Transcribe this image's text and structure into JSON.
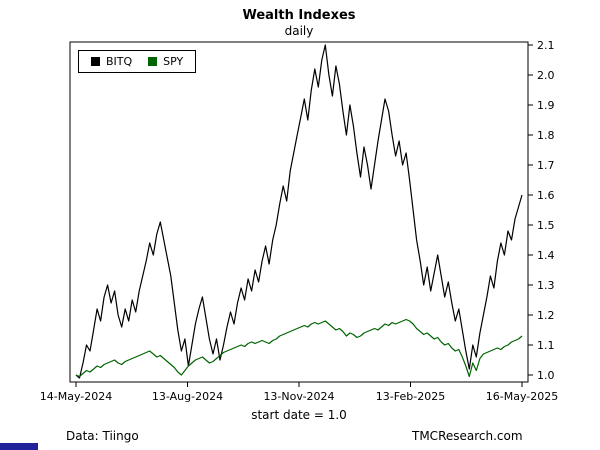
{
  "title": "Wealth Indexes",
  "subtitle": "daily",
  "footer": {
    "left": "Data: Tiingo",
    "right": "TMCResearch.com"
  },
  "chart_data": {
    "type": "line",
    "title": "Wealth Indexes",
    "subtitle": "daily",
    "xlabel": "start date = 1.0",
    "ylim": [
      1.0,
      2.1
    ],
    "grid": false,
    "legend_position": "top-left-inside",
    "x_tick_labels": [
      "14-May-2024",
      "13-Aug-2024",
      "13-Nov-2024",
      "13-Feb-2025",
      "16-May-2025"
    ],
    "y_tick_labels": [
      "1.0",
      "1.1",
      "1.2",
      "1.3",
      "1.4",
      "1.5",
      "1.6",
      "1.7",
      "1.8",
      "1.9",
      "2.0",
      "2.1"
    ],
    "series": [
      {
        "name": "BITQ",
        "color": "#000000",
        "values": [
          1.0,
          0.99,
          1.04,
          1.1,
          1.08,
          1.15,
          1.22,
          1.18,
          1.26,
          1.3,
          1.24,
          1.28,
          1.2,
          1.16,
          1.22,
          1.18,
          1.25,
          1.21,
          1.28,
          1.33,
          1.38,
          1.44,
          1.4,
          1.47,
          1.51,
          1.45,
          1.39,
          1.33,
          1.24,
          1.15,
          1.08,
          1.12,
          1.03,
          1.1,
          1.17,
          1.22,
          1.26,
          1.19,
          1.12,
          1.07,
          1.12,
          1.05,
          1.1,
          1.16,
          1.21,
          1.17,
          1.24,
          1.29,
          1.25,
          1.32,
          1.28,
          1.35,
          1.31,
          1.38,
          1.43,
          1.37,
          1.45,
          1.5,
          1.57,
          1.63,
          1.58,
          1.68,
          1.74,
          1.8,
          1.86,
          1.92,
          1.85,
          1.95,
          2.02,
          1.96,
          2.05,
          2.1,
          2.0,
          1.93,
          2.03,
          1.97,
          1.88,
          1.8,
          1.9,
          1.83,
          1.74,
          1.66,
          1.76,
          1.7,
          1.62,
          1.7,
          1.78,
          1.85,
          1.92,
          1.88,
          1.8,
          1.73,
          1.78,
          1.7,
          1.74,
          1.65,
          1.55,
          1.45,
          1.38,
          1.3,
          1.36,
          1.28,
          1.34,
          1.4,
          1.33,
          1.26,
          1.31,
          1.24,
          1.18,
          1.22,
          1.15,
          1.08,
          1.02,
          1.1,
          1.06,
          1.14,
          1.2,
          1.26,
          1.33,
          1.29,
          1.38,
          1.44,
          1.4,
          1.48,
          1.45,
          1.52,
          1.56,
          1.6
        ]
      },
      {
        "name": "SPY",
        "color": "#006400",
        "values": [
          1.0,
          0.995,
          1.005,
          1.015,
          1.01,
          1.02,
          1.03,
          1.025,
          1.035,
          1.04,
          1.045,
          1.05,
          1.04,
          1.035,
          1.045,
          1.05,
          1.055,
          1.06,
          1.065,
          1.07,
          1.075,
          1.08,
          1.07,
          1.06,
          1.065,
          1.055,
          1.045,
          1.035,
          1.025,
          1.01,
          1.0,
          1.015,
          1.03,
          1.04,
          1.05,
          1.055,
          1.06,
          1.05,
          1.04,
          1.045,
          1.055,
          1.065,
          1.075,
          1.08,
          1.085,
          1.09,
          1.095,
          1.1,
          1.095,
          1.105,
          1.11,
          1.105,
          1.11,
          1.115,
          1.11,
          1.105,
          1.115,
          1.12,
          1.13,
          1.135,
          1.14,
          1.145,
          1.15,
          1.155,
          1.16,
          1.165,
          1.16,
          1.17,
          1.175,
          1.17,
          1.175,
          1.18,
          1.17,
          1.16,
          1.15,
          1.155,
          1.145,
          1.13,
          1.14,
          1.135,
          1.125,
          1.13,
          1.14,
          1.145,
          1.15,
          1.155,
          1.15,
          1.16,
          1.17,
          1.165,
          1.175,
          1.17,
          1.175,
          1.18,
          1.185,
          1.18,
          1.17,
          1.155,
          1.145,
          1.135,
          1.14,
          1.13,
          1.12,
          1.125,
          1.11,
          1.1,
          1.105,
          1.09,
          1.08,
          1.085,
          1.06,
          1.03,
          0.995,
          1.04,
          1.015,
          1.055,
          1.07,
          1.075,
          1.08,
          1.085,
          1.09,
          1.085,
          1.095,
          1.1,
          1.11,
          1.115,
          1.12,
          1.13
        ]
      }
    ]
  }
}
